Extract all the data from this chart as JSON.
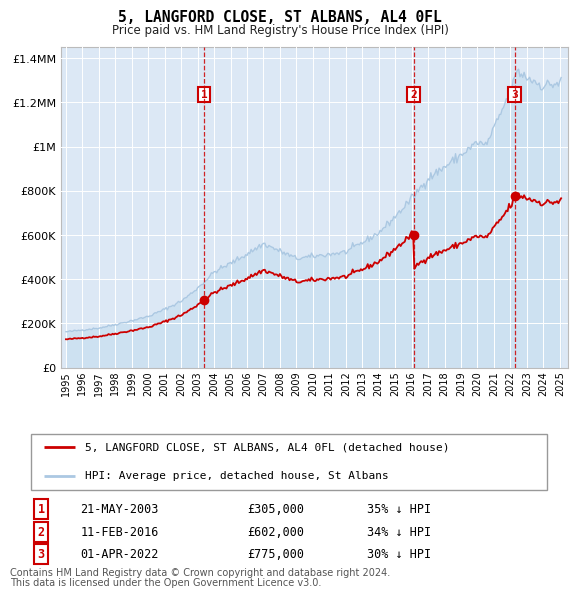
{
  "title": "5, LANGFORD CLOSE, ST ALBANS, AL4 0FL",
  "subtitle": "Price paid vs. HM Land Registry's House Price Index (HPI)",
  "legend_line1": "5, LANGFORD CLOSE, ST ALBANS, AL4 0FL (detached house)",
  "legend_line2": "HPI: Average price, detached house, St Albans",
  "sale_events": [
    {
      "label": "1",
      "date": "21-MAY-2003",
      "year": 2003.38,
      "price": 305000,
      "pct": "35%",
      "dir": "↓"
    },
    {
      "label": "2",
      "date": "11-FEB-2016",
      "year": 2016.12,
      "price": 602000,
      "pct": "34%",
      "dir": "↓"
    },
    {
      "label": "3",
      "date": "01-APR-2022",
      "year": 2022.25,
      "price": 775000,
      "pct": "30%",
      "dir": "↓"
    }
  ],
  "footer_line1": "Contains HM Land Registry data © Crown copyright and database right 2024.",
  "footer_line2": "This data is licensed under the Open Government Licence v3.0.",
  "hpi_color": "#abc8e2",
  "hpi_fill_color": "#c8dff0",
  "price_color": "#cc0000",
  "sale_box_color": "#cc0000",
  "dashed_line_color": "#cc0000",
  "background_chart": "#dce8f5",
  "grid_color": "#ffffff",
  "ylim": [
    0,
    1450000
  ],
  "xlim_start": 1994.7,
  "xlim_end": 2025.5
}
